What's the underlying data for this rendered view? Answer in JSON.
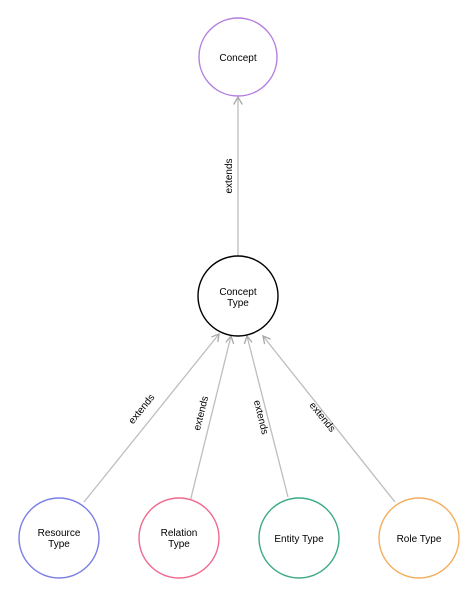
{
  "nodes": {
    "concept": {
      "lines": [
        "Concept"
      ],
      "color": "#b57ee0"
    },
    "concept_type": {
      "lines": [
        "Concept",
        "Type"
      ],
      "color": "#000000"
    },
    "resource_type": {
      "lines": [
        "Resource",
        "Type"
      ],
      "color": "#7a7fe6"
    },
    "relation_type": {
      "lines": [
        "Relation",
        "Type"
      ],
      "color": "#ef6a8e"
    },
    "entity_type": {
      "lines": [
        "Entity Type"
      ],
      "color": "#3daa86"
    },
    "role_type": {
      "lines": [
        "Role Type"
      ],
      "color": "#f5ad5c"
    }
  },
  "edges": [
    {
      "from": "concept_type",
      "to": "concept",
      "label": "extends"
    },
    {
      "from": "resource_type",
      "to": "concept_type",
      "label": "extends"
    },
    {
      "from": "relation_type",
      "to": "concept_type",
      "label": "extends"
    },
    {
      "from": "entity_type",
      "to": "concept_type",
      "label": "extends"
    },
    {
      "from": "role_type",
      "to": "concept_type",
      "label": "extends"
    }
  ]
}
